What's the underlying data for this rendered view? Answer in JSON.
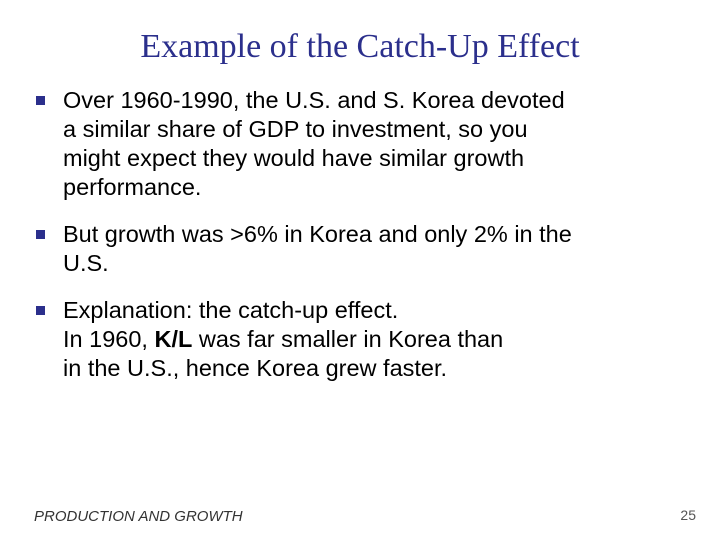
{
  "title": "Example of the Catch-Up Effect",
  "bullets": [
    {
      "lines": [
        "Over 1960-1990, the U.S. and S. Korea devoted",
        "a similar share of GDP to investment, so you",
        "might expect they would have similar growth",
        "performance."
      ]
    },
    {
      "lines": [
        "But growth was >6% in Korea and only 2% in the",
        "U.S."
      ]
    },
    {
      "line1": "Explanation:  the catch-up effect.",
      "line2_before": "In 1960, ",
      "line2_bold": "K/L",
      "line2_after": " was far smaller in Korea than",
      "line3": "in the U.S., hence Korea grew faster."
    }
  ],
  "footer": "PRODUCTION AND GROWTH",
  "page_number": "25",
  "colors": {
    "title": "#2b2f8c",
    "bullet_marker": "#2b2f8c",
    "text": "#000000"
  }
}
